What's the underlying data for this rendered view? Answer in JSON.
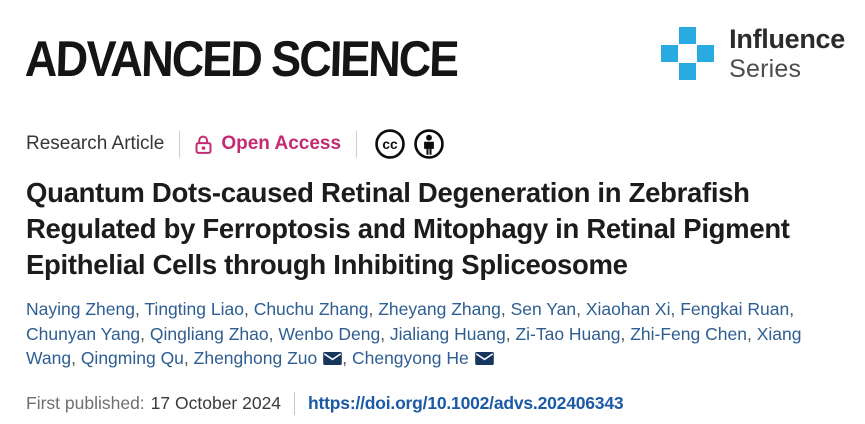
{
  "masthead": {
    "journal_logo": "ADVANCED SCIENCE",
    "series_badge": {
      "icon": "blue-cross-icon",
      "icon_color": "#29abe2",
      "line1": "Influence",
      "line2": "Series"
    }
  },
  "meta": {
    "article_type": "Research Article",
    "open_access_label": "Open Access",
    "open_access_color": "#c32b72",
    "license_icons": [
      "cc-icon",
      "by-attribution-icon"
    ]
  },
  "title": {
    "lines": [
      "Quantum Dots-caused Retinal Degeneration in Zebrafish",
      "Regulated by Ferroptosis and Mitophagy in Retinal Pigment",
      "Epithelial Cells through Inhibiting Spliceosome"
    ],
    "full": "Quantum Dots-caused Retinal Degeneration in Zebrafish Regulated by Ferroptosis and Mitophagy in Retinal Pigment Epithelial Cells through Inhibiting Spliceosome"
  },
  "authors": {
    "link_color": "#2e5e92",
    "envelope_color": "#17365d",
    "list": [
      {
        "name": "Naying Zheng",
        "email_icon": false
      },
      {
        "name": "Tingting Liao",
        "email_icon": false
      },
      {
        "name": "Chuchu Zhang",
        "email_icon": false
      },
      {
        "name": "Zheyang Zhang",
        "email_icon": false
      },
      {
        "name": "Sen Yan",
        "email_icon": false
      },
      {
        "name": "Xiaohan Xi",
        "email_icon": false
      },
      {
        "name": "Fengkai Ruan",
        "email_icon": false
      },
      {
        "name": "Chunyan Yang",
        "email_icon": false
      },
      {
        "name": "Qingliang Zhao",
        "email_icon": false
      },
      {
        "name": "Wenbo Deng",
        "email_icon": false
      },
      {
        "name": "Jialiang Huang",
        "email_icon": false
      },
      {
        "name": "Zi-Tao Huang",
        "email_icon": false
      },
      {
        "name": "Zhi-Feng Chen",
        "email_icon": false
      },
      {
        "name": "Xiang Wang",
        "email_icon": false
      },
      {
        "name": "Qingming Qu",
        "email_icon": false
      },
      {
        "name": "Zhenghong Zuo",
        "email_icon": true
      },
      {
        "name": "Chengyong He",
        "email_icon": true
      }
    ]
  },
  "publication": {
    "first_published_label": "First published:",
    "date": "17 October 2024",
    "doi_url": "https://doi.org/10.1002/advs.202406343",
    "link_color": "#1c5aa6"
  }
}
